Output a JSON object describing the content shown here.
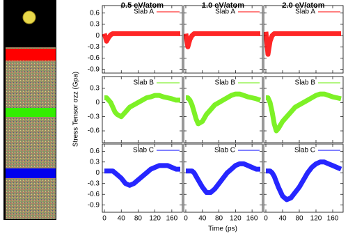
{
  "column_titles": [
    "0.5 eV/atom",
    "1.0 eV/atom",
    "2.0 eV/atom"
  ],
  "xlabel": "Time (ps)",
  "ylabel": "Stress Tensor σzz (Gpa)",
  "chart_data": [
    {
      "type": "line",
      "x": [
        0,
        5,
        10,
        15,
        20,
        25,
        30,
        40,
        50,
        60,
        70,
        80,
        90,
        100,
        110,
        120,
        130,
        140,
        150,
        160,
        170,
        180
      ],
      "xlim": [
        -5,
        185
      ],
      "xticks": [
        0,
        40,
        80,
        120,
        160
      ],
      "ylim": [
        -1,
        0.8
      ],
      "yticks": [
        0.6,
        0.3,
        0,
        -0.3,
        -0.6,
        -0.9
      ],
      "series": [
        {
          "name": "Slab A",
          "color": "#ff0000",
          "values": [
            0.05,
            -0.15,
            -0.05,
            0.02,
            0.05,
            0.05,
            0.05,
            0.05,
            0.05,
            0.05,
            0.05,
            0.05,
            0.05,
            0.05,
            0.05,
            0.05,
            0.05,
            0.05,
            0.05,
            0.05,
            0.05,
            0.05
          ]
        }
      ]
    },
    {
      "type": "line",
      "x": [
        0,
        5,
        10,
        15,
        20,
        25,
        30,
        40,
        50,
        60,
        70,
        80,
        90,
        100,
        110,
        120,
        130,
        140,
        150,
        160,
        170,
        180
      ],
      "xlim": [
        -5,
        185
      ],
      "xticks": [
        0,
        40,
        80,
        120,
        160
      ],
      "ylim": [
        -1,
        0.8
      ],
      "yticks": [
        0.6,
        0.3,
        0,
        -0.3,
        -0.6,
        -0.9
      ],
      "series": [
        {
          "name": "Slab A",
          "color": "#ff0000",
          "values": [
            0.05,
            -0.3,
            -0.1,
            0,
            0.05,
            0.05,
            0.05,
            0.05,
            0.05,
            0.05,
            0.05,
            0.05,
            0.05,
            0.05,
            0.05,
            0.05,
            0.05,
            0.05,
            0.05,
            0.05,
            0.05,
            0.05
          ]
        }
      ]
    },
    {
      "type": "line",
      "x": [
        0,
        5,
        10,
        15,
        20,
        25,
        30,
        40,
        50,
        60,
        70,
        80,
        90,
        100,
        110,
        120,
        130,
        140,
        150,
        160,
        170,
        180
      ],
      "xlim": [
        -5,
        185
      ],
      "xticks": [
        0,
        40,
        80,
        120,
        160
      ],
      "ylim": [
        -1,
        0.8
      ],
      "yticks": [
        0.6,
        0.3,
        0,
        -0.3,
        -0.6,
        -0.9
      ],
      "series": [
        {
          "name": "Slab A",
          "color": "#ff0000",
          "values": [
            0.1,
            -0.5,
            -0.15,
            0,
            0.05,
            0.05,
            0.05,
            0.05,
            0.05,
            0.05,
            0.05,
            0.05,
            0.05,
            0.05,
            0.05,
            0.05,
            0.05,
            0.05,
            0.05,
            0.05,
            0.05,
            0.05
          ]
        }
      ]
    },
    {
      "type": "line",
      "x": [
        0,
        5,
        10,
        15,
        20,
        25,
        30,
        40,
        50,
        60,
        70,
        80,
        90,
        100,
        110,
        120,
        130,
        140,
        150,
        160,
        170,
        180
      ],
      "xlim": [
        -5,
        185
      ],
      "xticks": [
        0,
        40,
        80,
        120,
        160
      ],
      "ylim": [
        -0.85,
        0.55
      ],
      "yticks": [
        0.3,
        0,
        -0.3,
        -0.6
      ],
      "series": [
        {
          "name": "Slab B",
          "color": "#66ee00",
          "values": [
            0.1,
            0.1,
            0.05,
            0,
            -0.1,
            -0.2,
            -0.25,
            -0.3,
            -0.2,
            -0.1,
            -0.05,
            0,
            0.05,
            0.1,
            0.12,
            0.15,
            0.15,
            0.12,
            0.1,
            0.08,
            0.05,
            0.05
          ]
        }
      ]
    },
    {
      "type": "line",
      "x": [
        0,
        5,
        10,
        15,
        20,
        25,
        30,
        40,
        50,
        60,
        70,
        80,
        90,
        100,
        110,
        120,
        130,
        140,
        150,
        160,
        170,
        180
      ],
      "xlim": [
        -5,
        185
      ],
      "xticks": [
        0,
        40,
        80,
        120,
        160
      ],
      "ylim": [
        -0.85,
        0.55
      ],
      "yticks": [
        0.3,
        0,
        -0.3,
        -0.6
      ],
      "series": [
        {
          "name": "Slab B",
          "color": "#66ee00",
          "values": [
            0.1,
            0.1,
            0.05,
            -0.05,
            -0.2,
            -0.35,
            -0.45,
            -0.4,
            -0.25,
            -0.15,
            -0.05,
            0,
            0.05,
            0.1,
            0.15,
            0.18,
            0.18,
            0.15,
            0.12,
            0.1,
            0.08,
            0.05
          ]
        }
      ]
    },
    {
      "type": "line",
      "x": [
        0,
        5,
        10,
        15,
        20,
        25,
        30,
        40,
        50,
        60,
        70,
        80,
        90,
        100,
        110,
        120,
        130,
        140,
        150,
        160,
        170,
        180
      ],
      "xlim": [
        -5,
        185
      ],
      "xticks": [
        0,
        40,
        80,
        120,
        160
      ],
      "ylim": [
        -0.85,
        0.55
      ],
      "yticks": [
        0.3,
        0,
        -0.3,
        -0.6
      ],
      "series": [
        {
          "name": "Slab B",
          "color": "#66ee00",
          "values": [
            0.1,
            0.1,
            0,
            -0.2,
            -0.45,
            -0.6,
            -0.55,
            -0.4,
            -0.3,
            -0.2,
            -0.1,
            -0.05,
            0,
            0.05,
            0.1,
            0.15,
            0.18,
            0.18,
            0.15,
            0.12,
            0.1,
            0.08
          ]
        }
      ]
    },
    {
      "type": "line",
      "x": [
        0,
        5,
        10,
        15,
        20,
        25,
        30,
        40,
        50,
        60,
        70,
        80,
        90,
        100,
        110,
        120,
        130,
        140,
        150,
        160,
        170,
        180
      ],
      "xlim": [
        -5,
        185
      ],
      "xticks": [
        0,
        40,
        80,
        120,
        160
      ],
      "ylim": [
        -1.1,
        0.8
      ],
      "yticks": [
        0.6,
        0.3,
        0,
        -0.3,
        -0.6,
        -0.9
      ],
      "series": [
        {
          "name": "Slab C",
          "color": "#0000ff",
          "values": [
            0.05,
            0.05,
            0.05,
            0.05,
            0.05,
            0,
            -0.05,
            -0.15,
            -0.3,
            -0.35,
            -0.3,
            -0.2,
            -0.1,
            0,
            0.1,
            0.15,
            0.2,
            0.2,
            0.2,
            0.15,
            0.1,
            0.1
          ]
        }
      ]
    },
    {
      "type": "line",
      "x": [
        0,
        5,
        10,
        15,
        20,
        25,
        30,
        40,
        50,
        60,
        70,
        80,
        90,
        100,
        110,
        120,
        130,
        140,
        150,
        160,
        170,
        180
      ],
      "xlim": [
        -5,
        185
      ],
      "xticks": [
        0,
        40,
        80,
        120,
        160
      ],
      "ylim": [
        -1.1,
        0.8
      ],
      "yticks": [
        0.6,
        0.3,
        0,
        -0.3,
        -0.6,
        -0.9
      ],
      "series": [
        {
          "name": "Slab C",
          "color": "#0000ff",
          "values": [
            0.05,
            0.05,
            0.05,
            0.05,
            0,
            -0.1,
            -0.2,
            -0.4,
            -0.55,
            -0.55,
            -0.45,
            -0.3,
            -0.15,
            0,
            0.1,
            0.2,
            0.25,
            0.25,
            0.2,
            0.15,
            0.1,
            0.1
          ]
        }
      ]
    },
    {
      "type": "line",
      "x": [
        0,
        5,
        10,
        15,
        20,
        25,
        30,
        40,
        50,
        60,
        70,
        80,
        90,
        100,
        110,
        120,
        130,
        140,
        150,
        160,
        170,
        180
      ],
      "xlim": [
        -5,
        185
      ],
      "xticks": [
        0,
        40,
        80,
        120,
        160
      ],
      "ylim": [
        -1.1,
        0.8
      ],
      "yticks": [
        0.6,
        0.3,
        0,
        -0.3,
        -0.6,
        -0.9
      ],
      "series": [
        {
          "name": "Slab C",
          "color": "#0000ff",
          "values": [
            0.05,
            0.05,
            0.05,
            0,
            -0.1,
            -0.25,
            -0.4,
            -0.65,
            -0.75,
            -0.7,
            -0.55,
            -0.4,
            -0.2,
            0,
            0.15,
            0.25,
            0.3,
            0.3,
            0.25,
            0.2,
            0.15,
            0.1
          ]
        }
      ]
    }
  ]
}
